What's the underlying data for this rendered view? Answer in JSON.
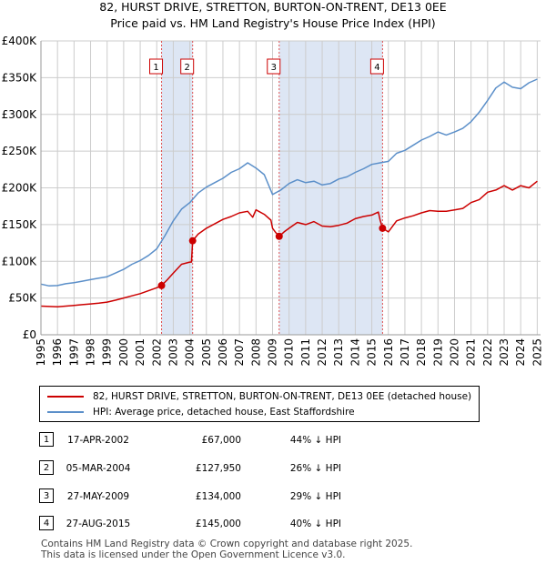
{
  "header": {
    "title_line1": "82, HURST DRIVE, STRETTON, BURTON-ON-TRENT, DE13 0EE",
    "title_line2": "Price paid vs. HM Land Registry's House Price Index (HPI)"
  },
  "chart_data": {
    "type": "line",
    "y_ticks": [
      "£0",
      "£50K",
      "£100K",
      "£150K",
      "£200K",
      "£250K",
      "£300K",
      "£350K",
      "£400K"
    ],
    "y_tick_values": [
      0,
      50000,
      100000,
      150000,
      200000,
      250000,
      300000,
      350000,
      400000
    ],
    "x_ticks": [
      "1995",
      "1996",
      "1997",
      "1998",
      "1999",
      "2000",
      "2001",
      "2002",
      "2003",
      "2004",
      "2005",
      "2006",
      "2007",
      "2008",
      "2009",
      "2010",
      "2011",
      "2012",
      "2013",
      "2014",
      "2015",
      "2016",
      "2017",
      "2018",
      "2019",
      "2020",
      "2021",
      "2022",
      "2023",
      "2024",
      "2025"
    ],
    "xlim": [
      1995,
      2025.2
    ],
    "ylim": [
      0,
      400000
    ],
    "grid": true,
    "series": [
      {
        "name": "82, HURST DRIVE, STRETTON, BURTON-ON-TRENT, DE13 0EE (detached house)",
        "color": "#cc0000",
        "points": [
          [
            1995.0,
            39000
          ],
          [
            1995.5,
            38500
          ],
          [
            1996.0,
            38000
          ],
          [
            1996.5,
            39000
          ],
          [
            1997.0,
            40000
          ],
          [
            1997.5,
            41000
          ],
          [
            1998.0,
            42000
          ],
          [
            1998.5,
            43000
          ],
          [
            1999.0,
            44500
          ],
          [
            1999.5,
            47000
          ],
          [
            2000.0,
            50000
          ],
          [
            2000.5,
            53000
          ],
          [
            2001.0,
            56000
          ],
          [
            2001.5,
            60000
          ],
          [
            2002.0,
            64000
          ],
          [
            2002.29,
            67000
          ],
          [
            2002.6,
            74000
          ],
          [
            2003.0,
            84000
          ],
          [
            2003.5,
            96000
          ],
          [
            2004.0,
            99000
          ],
          [
            2004.1,
            99000
          ],
          [
            2004.17,
            127950
          ],
          [
            2004.5,
            137000
          ],
          [
            2005.0,
            145000
          ],
          [
            2005.5,
            151000
          ],
          [
            2006.0,
            157000
          ],
          [
            2006.5,
            161000
          ],
          [
            2007.0,
            166000
          ],
          [
            2007.5,
            168000
          ],
          [
            2007.8,
            160000
          ],
          [
            2008.0,
            170000
          ],
          [
            2008.5,
            164000
          ],
          [
            2008.9,
            156000
          ],
          [
            2009.0,
            145000
          ],
          [
            2009.2,
            139000
          ],
          [
            2009.4,
            134000
          ],
          [
            2009.7,
            140000
          ],
          [
            2010.0,
            145000
          ],
          [
            2010.5,
            153000
          ],
          [
            2011.0,
            150000
          ],
          [
            2011.5,
            154000
          ],
          [
            2012.0,
            148000
          ],
          [
            2012.5,
            147000
          ],
          [
            2013.0,
            149000
          ],
          [
            2013.5,
            152000
          ],
          [
            2014.0,
            158000
          ],
          [
            2014.5,
            161000
          ],
          [
            2015.0,
            163000
          ],
          [
            2015.4,
            167000
          ],
          [
            2015.5,
            156000
          ],
          [
            2015.65,
            145000
          ],
          [
            2016.0,
            140000
          ],
          [
            2016.5,
            155000
          ],
          [
            2017.0,
            159000
          ],
          [
            2017.5,
            162000
          ],
          [
            2018.0,
            166000
          ],
          [
            2018.5,
            169000
          ],
          [
            2019.0,
            168000
          ],
          [
            2019.5,
            168000
          ],
          [
            2020.0,
            170000
          ],
          [
            2020.5,
            172000
          ],
          [
            2021.0,
            180000
          ],
          [
            2021.5,
            184000
          ],
          [
            2022.0,
            194000
          ],
          [
            2022.5,
            197000
          ],
          [
            2023.0,
            203000
          ],
          [
            2023.5,
            197000
          ],
          [
            2024.0,
            203000
          ],
          [
            2024.5,
            200000
          ],
          [
            2025.0,
            209000
          ]
        ]
      },
      {
        "name": "HPI: Average price, detached house, East Staffordshire",
        "color": "#5b8fc9",
        "points": [
          [
            1995.0,
            69000
          ],
          [
            1995.5,
            66500
          ],
          [
            1996.0,
            67000
          ],
          [
            1996.5,
            69500
          ],
          [
            1997.0,
            71000
          ],
          [
            1997.5,
            73000
          ],
          [
            1998.0,
            75000
          ],
          [
            1998.5,
            77000
          ],
          [
            1999.0,
            79000
          ],
          [
            1999.5,
            84000
          ],
          [
            2000.0,
            89000
          ],
          [
            2000.5,
            96000
          ],
          [
            2001.0,
            101000
          ],
          [
            2001.5,
            108000
          ],
          [
            2002.0,
            117000
          ],
          [
            2002.5,
            135000
          ],
          [
            2003.0,
            155000
          ],
          [
            2003.5,
            171000
          ],
          [
            2004.0,
            180000
          ],
          [
            2004.5,
            193000
          ],
          [
            2005.0,
            201000
          ],
          [
            2005.5,
            207000
          ],
          [
            2006.0,
            213000
          ],
          [
            2006.5,
            221000
          ],
          [
            2007.0,
            226000
          ],
          [
            2007.5,
            234000
          ],
          [
            2008.0,
            227000
          ],
          [
            2008.5,
            218000
          ],
          [
            2009.0,
            191000
          ],
          [
            2009.5,
            197000
          ],
          [
            2010.0,
            206000
          ],
          [
            2010.5,
            211000
          ],
          [
            2011.0,
            207000
          ],
          [
            2011.5,
            209000
          ],
          [
            2012.0,
            204000
          ],
          [
            2012.5,
            206000
          ],
          [
            2013.0,
            212000
          ],
          [
            2013.5,
            215000
          ],
          [
            2014.0,
            221000
          ],
          [
            2014.5,
            226000
          ],
          [
            2015.0,
            232000
          ],
          [
            2015.5,
            234000
          ],
          [
            2016.0,
            236000
          ],
          [
            2016.5,
            247000
          ],
          [
            2017.0,
            251000
          ],
          [
            2017.5,
            258000
          ],
          [
            2018.0,
            265000
          ],
          [
            2018.5,
            270000
          ],
          [
            2019.0,
            276000
          ],
          [
            2019.5,
            272000
          ],
          [
            2020.0,
            276000
          ],
          [
            2020.5,
            281000
          ],
          [
            2021.0,
            290000
          ],
          [
            2021.5,
            303000
          ],
          [
            2022.0,
            319000
          ],
          [
            2022.5,
            336000
          ],
          [
            2023.0,
            344000
          ],
          [
            2023.5,
            337000
          ],
          [
            2024.0,
            335000
          ],
          [
            2024.5,
            343000
          ],
          [
            2025.0,
            348000
          ]
        ]
      }
    ],
    "sales": [
      {
        "label": "1",
        "x": 2002.29,
        "y": 67000
      },
      {
        "label": "2",
        "x": 2004.17,
        "y": 127950
      },
      {
        "label": "3",
        "x": 2009.4,
        "y": 134000
      },
      {
        "label": "4",
        "x": 2015.65,
        "y": 145000
      }
    ],
    "shaded_ranges": [
      [
        2002.29,
        2004.17
      ],
      [
        2009.4,
        2015.65
      ]
    ]
  },
  "legend": {
    "red_label": "82, HURST DRIVE, STRETTON, BURTON-ON-TRENT, DE13 0EE (detached house)",
    "blue_label": "HPI: Average price, detached house, East Staffordshire",
    "red_color": "#cc0000",
    "blue_color": "#5b8fc9"
  },
  "transactions": [
    {
      "num": "1",
      "date": "17-APR-2002",
      "price": "£67,000",
      "hpi": "44% ↓ HPI"
    },
    {
      "num": "2",
      "date": "05-MAR-2004",
      "price": "£127,950",
      "hpi": "26% ↓ HPI"
    },
    {
      "num": "3",
      "date": "27-MAY-2009",
      "price": "£134,000",
      "hpi": "29% ↓ HPI"
    },
    {
      "num": "4",
      "date": "27-AUG-2015",
      "price": "£145,000",
      "hpi": "40% ↓ HPI"
    }
  ],
  "footer": {
    "line1": "Contains HM Land Registry data © Crown copyright and database right 2025.",
    "line2": "This data is licensed under the Open Government Licence v3.0."
  }
}
